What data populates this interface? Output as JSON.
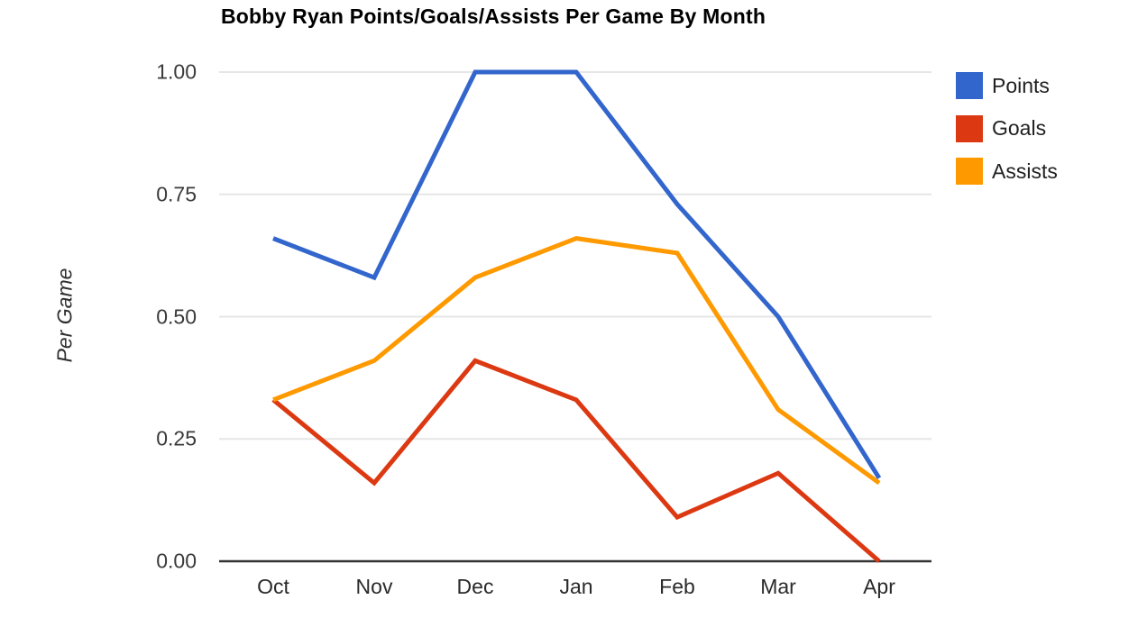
{
  "chart_data": {
    "type": "line",
    "title": "Bobby Ryan Points/Goals/Assists Per Game By Month",
    "ylabel": "Per Game",
    "xlabel": "",
    "categories": [
      "Oct",
      "Nov",
      "Dec",
      "Jan",
      "Feb",
      "Mar",
      "Apr"
    ],
    "series": [
      {
        "name": "Points",
        "color": "#3366CC",
        "values": [
          0.66,
          0.58,
          1.0,
          1.0,
          0.73,
          0.5,
          0.17
        ]
      },
      {
        "name": "Goals",
        "color": "#DC3912",
        "values": [
          0.33,
          0.16,
          0.41,
          0.33,
          0.09,
          0.18,
          0.0
        ]
      },
      {
        "name": "Assists",
        "color": "#FF9900",
        "values": [
          0.33,
          0.41,
          0.58,
          0.66,
          0.63,
          0.31,
          0.16
        ]
      }
    ],
    "ylim": [
      0,
      1.0
    ],
    "ytick_labels": [
      "0.00",
      "0.25",
      "0.50",
      "0.75",
      "1.00"
    ],
    "ytick_values": [
      0,
      0.25,
      0.5,
      0.75,
      1.0
    ],
    "grid": true,
    "legend_position": "right",
    "colors": {
      "axis_line": "#333333",
      "grid_line": "#e6e6e6",
      "title_text": "#000000",
      "tick_text": "#2a2a2a"
    }
  }
}
